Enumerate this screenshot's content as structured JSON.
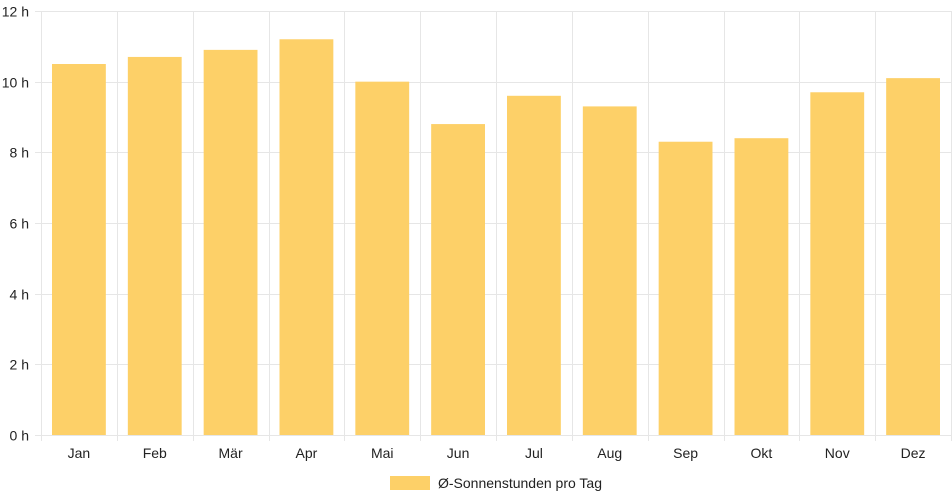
{
  "chart_data": {
    "type": "bar",
    "categories": [
      "Jan",
      "Feb",
      "Mär",
      "Apr",
      "Mai",
      "Jun",
      "Jul",
      "Aug",
      "Sep",
      "Okt",
      "Nov",
      "Dez"
    ],
    "series": [
      {
        "name": "Ø-Sonnenstunden pro Tag",
        "values": [
          10.5,
          10.7,
          10.9,
          11.2,
          10.0,
          8.8,
          9.6,
          9.3,
          8.3,
          8.4,
          9.7,
          10.1
        ],
        "color": "#fdd068"
      }
    ],
    "ylim": [
      0,
      12
    ],
    "yticks": [
      0,
      2,
      4,
      6,
      8,
      10,
      12
    ],
    "ytick_suffix": " h",
    "title": "",
    "xlabel": "",
    "ylabel": "",
    "grid": true,
    "legend_position": "bottom"
  },
  "colors": {
    "grid": "#e6e6e6",
    "text": "#222222"
  }
}
